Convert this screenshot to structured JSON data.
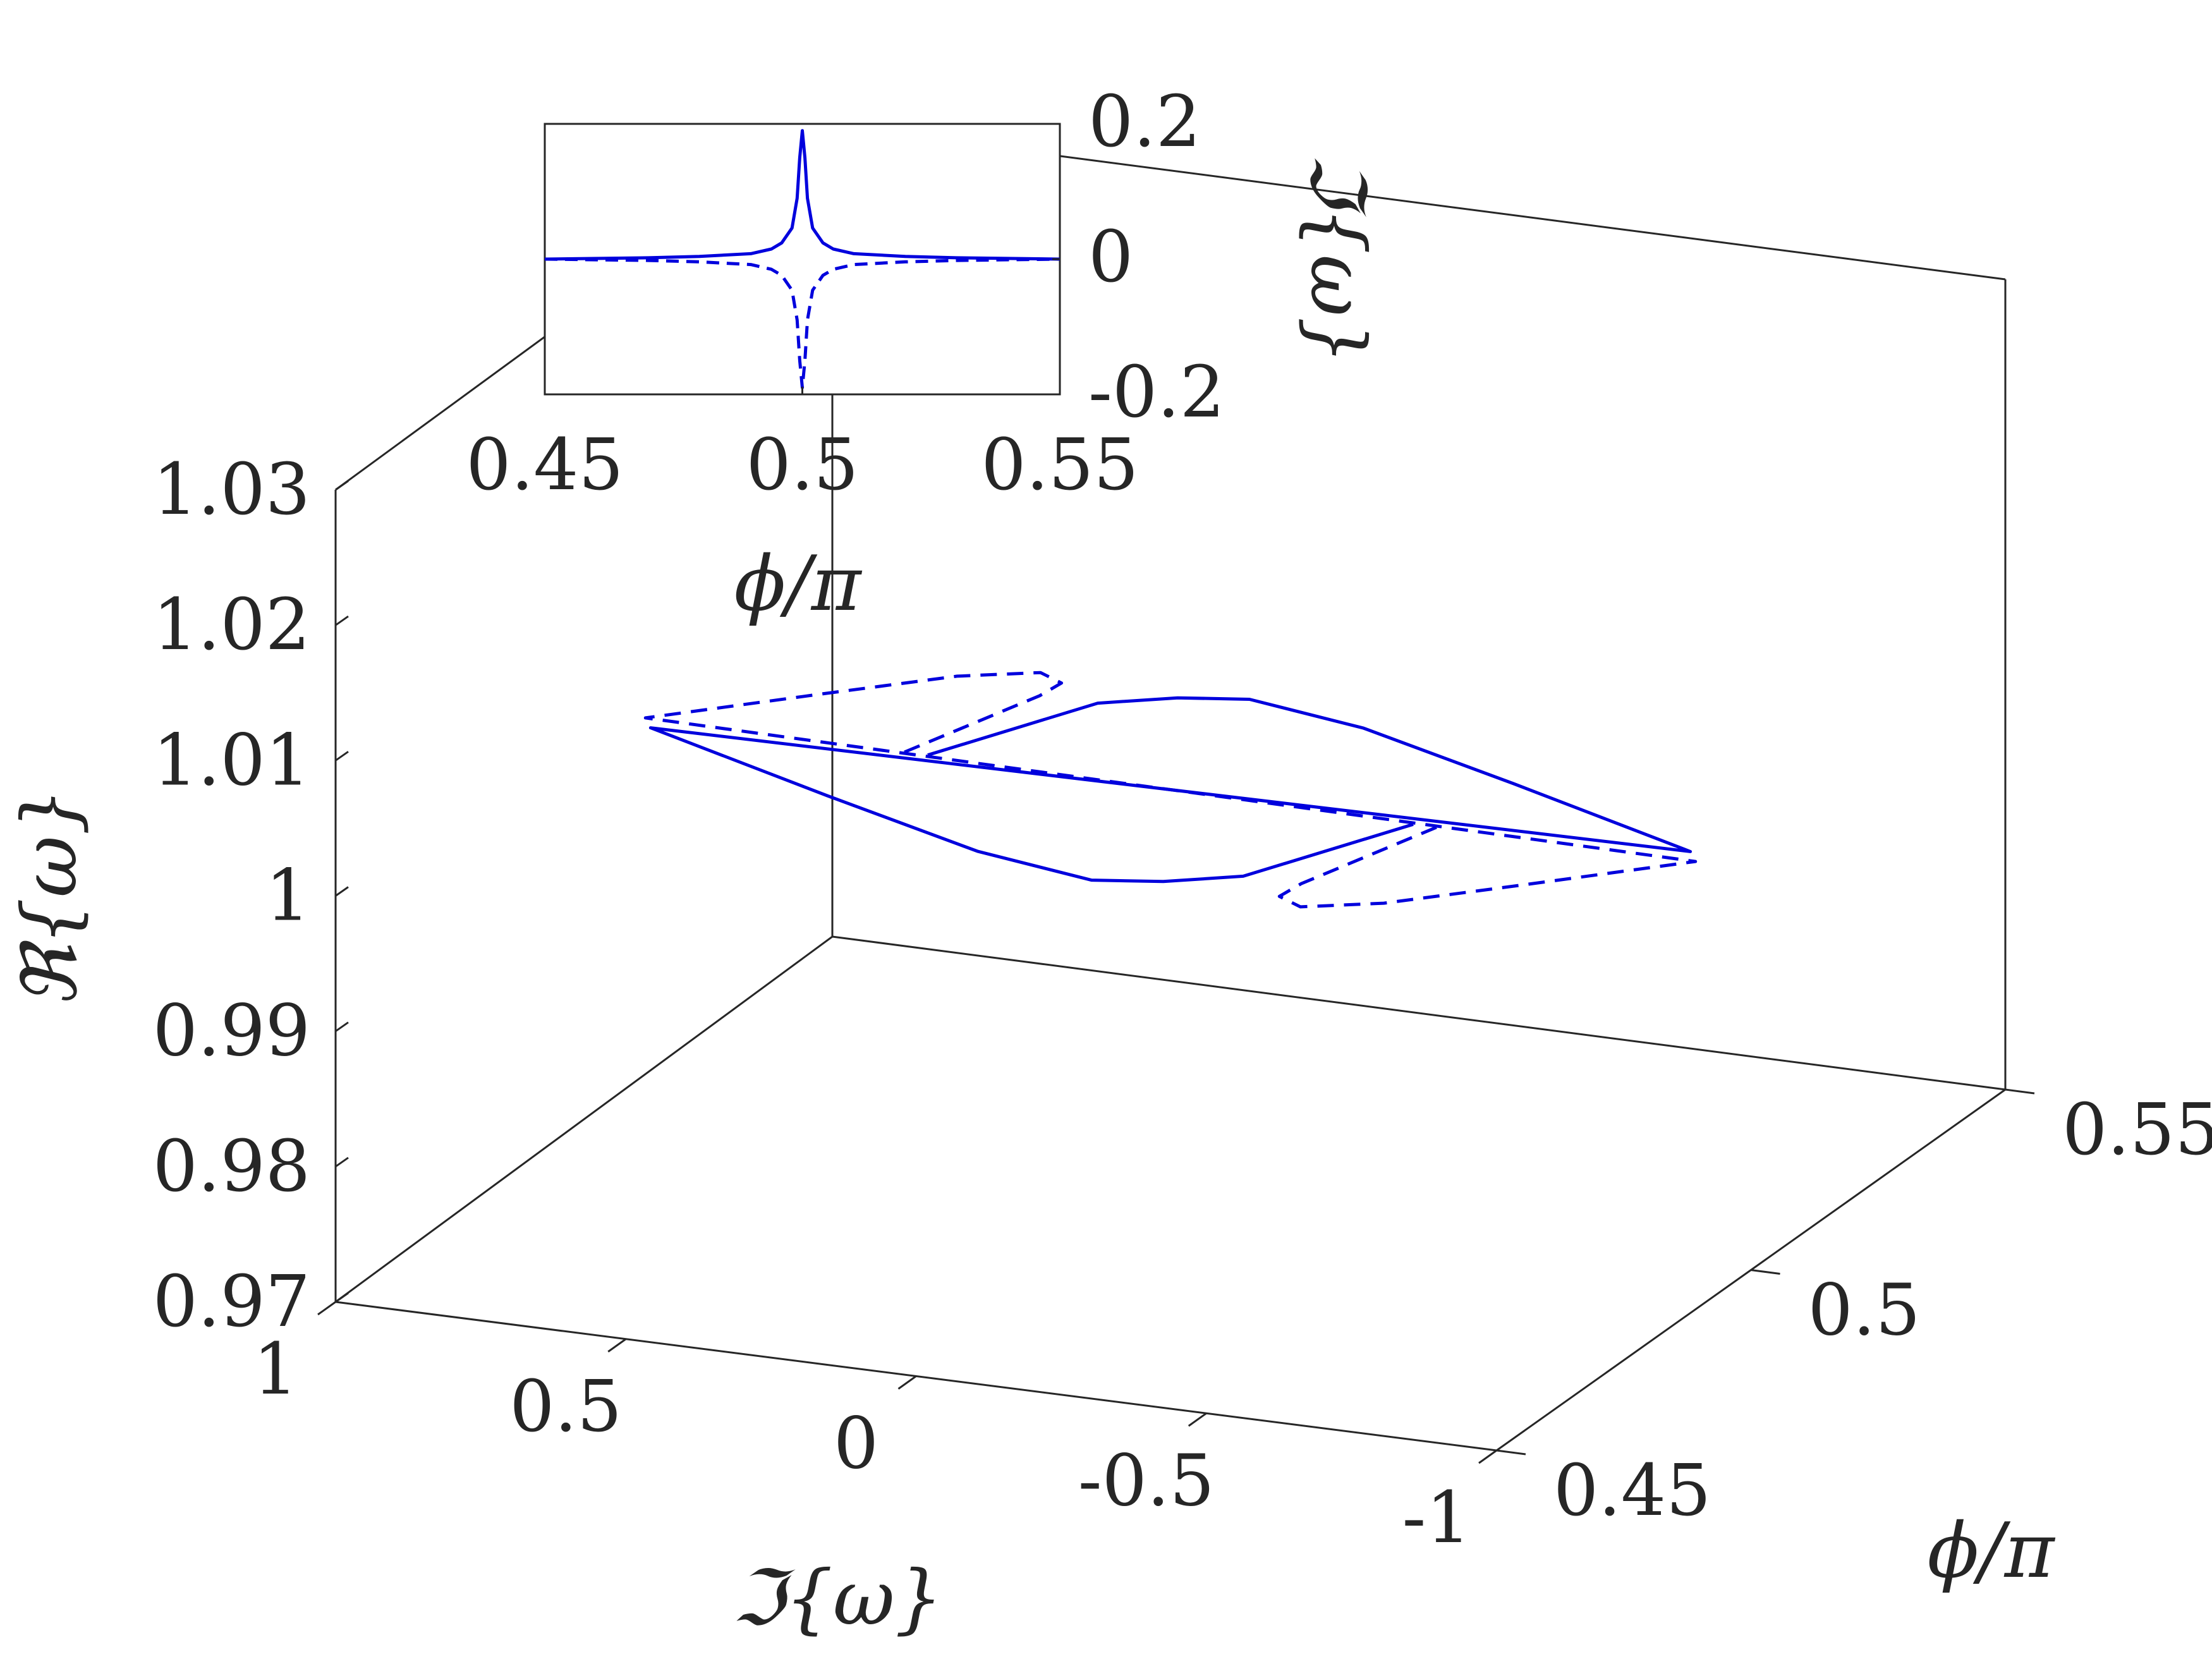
{
  "colors": {
    "curve": "#0000dd",
    "axes": "#262626",
    "background": "#ffffff"
  },
  "chart_data": [
    {
      "type": "line",
      "projection": "3d",
      "xlabel": "ℑ{ω}",
      "ylabel": "ϕ/π",
      "zlabel": "ℜ{ω}",
      "xlim": [
        -1,
        1
      ],
      "ylim": [
        0.45,
        0.55
      ],
      "zlim": [
        0.97,
        1.03
      ],
      "x_ticks": [
        "1",
        "0.5",
        "0",
        "-0.5",
        "-1"
      ],
      "y_ticks": [
        "0.45",
        "0.5",
        "0.55"
      ],
      "z_ticks": [
        "1.03",
        "1.02",
        "1.01",
        "1",
        "0.99",
        "0.98",
        "0.97"
      ],
      "grid": false,
      "series": [
        {
          "style": "solid",
          "x": [
            -0.02,
            -0.05,
            -0.1,
            -0.18,
            -0.35,
            -0.6,
            -0.9,
            0.9,
            0.6,
            0.35,
            0.18,
            0.1,
            0.05,
            0.02
          ],
          "y": [
            0.45,
            0.48,
            0.49,
            0.495,
            0.498,
            0.499,
            0.4995,
            0.5005,
            0.501,
            0.502,
            0.505,
            0.51,
            0.52,
            0.55
          ],
          "z": [
            1.016,
            1.012,
            1.01,
            1.009,
            1.007,
            1.004,
            1.0005,
            0.9995,
            0.996,
            0.993,
            0.991,
            0.99,
            0.988,
            0.984
          ]
        },
        {
          "style": "dashed",
          "x": [
            0.02,
            0.05,
            0.1,
            0.18,
            0.35,
            0.6,
            0.9,
            -0.9,
            -0.6,
            -0.35,
            -0.18,
            -0.1,
            -0.05,
            -0.02
          ],
          "y": [
            0.45,
            0.48,
            0.49,
            0.495,
            0.498,
            0.499,
            0.4995,
            0.5005,
            0.501,
            0.502,
            0.505,
            0.51,
            0.52,
            0.55
          ],
          "z": [
            1.016,
            1.012,
            1.01,
            1.009,
            1.007,
            1.004,
            1.0005,
            0.9995,
            0.996,
            0.993,
            0.991,
            0.99,
            0.988,
            0.984
          ]
        }
      ]
    },
    {
      "type": "line",
      "role": "inset",
      "xlabel": "ϕ/π",
      "ylabel": "ℑ{ω}",
      "xlim": [
        0.45,
        0.55
      ],
      "ylim": [
        -0.2,
        0.2
      ],
      "x_ticks": [
        "0.45",
        "0.5",
        "0.55"
      ],
      "y_ticks": [
        "0.2",
        "0",
        "-0.2"
      ],
      "grid": false,
      "series": [
        {
          "style": "solid",
          "x": [
            0.45,
            0.47,
            0.48,
            0.49,
            0.494,
            0.496,
            0.498,
            0.499,
            0.4995,
            0.5,
            0.5005,
            0.501,
            0.502,
            0.504,
            0.506,
            0.51,
            0.52,
            0.53,
            0.55
          ],
          "y": [
            0.0,
            0.002,
            0.004,
            0.008,
            0.015,
            0.024,
            0.046,
            0.09,
            0.15,
            0.19,
            0.15,
            0.09,
            0.046,
            0.024,
            0.015,
            0.008,
            0.004,
            0.002,
            0.0
          ]
        },
        {
          "style": "dashed",
          "x": [
            0.45,
            0.47,
            0.48,
            0.49,
            0.494,
            0.496,
            0.498,
            0.499,
            0.4995,
            0.5,
            0.5005,
            0.501,
            0.502,
            0.504,
            0.506,
            0.51,
            0.52,
            0.53,
            0.55
          ],
          "y": [
            0.0,
            -0.002,
            -0.004,
            -0.008,
            -0.015,
            -0.024,
            -0.046,
            -0.09,
            -0.15,
            -0.19,
            -0.15,
            -0.09,
            -0.046,
            -0.024,
            -0.015,
            -0.008,
            -0.004,
            -0.002,
            0.0
          ]
        }
      ]
    }
  ]
}
